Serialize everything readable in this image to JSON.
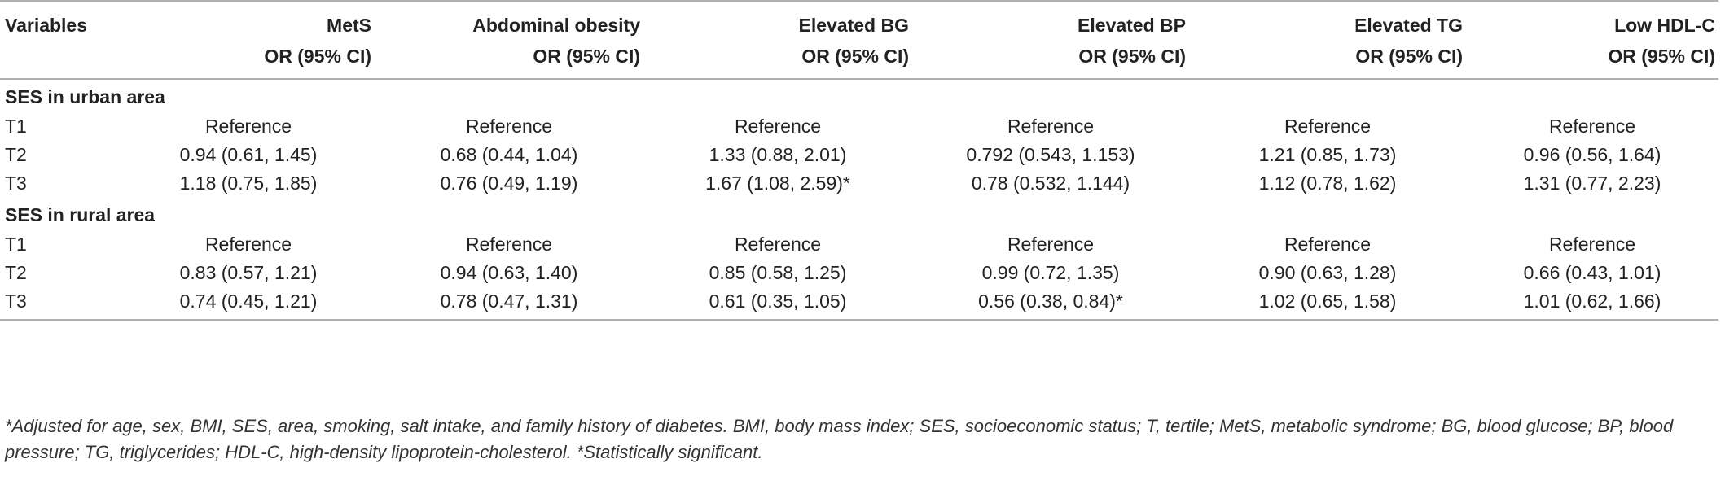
{
  "table": {
    "header_row1": [
      "Variables",
      "MetS",
      "Abdominal obesity",
      "Elevated BG",
      "Elevated BP",
      "Elevated TG",
      "Low HDL-C"
    ],
    "header_row2": [
      "",
      "OR (95% CI)",
      "OR (95% CI)",
      "OR (95% CI)",
      "OR (95% CI)",
      "OR (95% CI)",
      "OR (95% CI)"
    ],
    "sections": [
      {
        "title": "SES in urban area",
        "rows": [
          [
            "T1",
            "Reference",
            "Reference",
            "Reference",
            "Reference",
            "Reference",
            "Reference"
          ],
          [
            "T2",
            "0.94 (0.61, 1.45)",
            "0.68 (0.44, 1.04)",
            "1.33 (0.88, 2.01)",
            "0.792 (0.543, 1.153)",
            "1.21 (0.85, 1.73)",
            "0.96 (0.56, 1.64)"
          ],
          [
            "T3",
            "1.18 (0.75, 1.85)",
            "0.76 (0.49, 1.19)",
            "1.67 (1.08, 2.59)*",
            "0.78 (0.532, 1.144)",
            "1.12 (0.78, 1.62)",
            "1.31 (0.77, 2.23)"
          ]
        ]
      },
      {
        "title": "SES in rural area",
        "rows": [
          [
            "T1",
            "Reference",
            "Reference",
            "Reference",
            "Reference",
            "Reference",
            "Reference"
          ],
          [
            "T2",
            "0.83 (0.57, 1.21)",
            "0.94 (0.63, 1.40)",
            "0.85 (0.58, 1.25)",
            "0.99 (0.72, 1.35)",
            "0.90 (0.63, 1.28)",
            "0.66 (0.43, 1.01)"
          ],
          [
            "T3",
            "0.74 (0.45, 1.21)",
            "0.78 (0.47, 1.31)",
            "0.61 (0.35, 1.05)",
            "0.56 (0.38, 0.84)*",
            "1.02 (0.65, 1.58)",
            "1.01 (0.62, 1.66)"
          ]
        ]
      }
    ]
  },
  "footnote": "*Adjusted for age, sex, BMI, SES, area, smoking, salt intake, and family history of diabetes. BMI, body mass index; SES, socioeconomic status; T, tertile; MetS, metabolic syndrome; BG, blood glucose; BP, blood pressure; TG, triglycerides; HDL-C, high-density lipoprotein-cholesterol. *Statistically significant."
}
